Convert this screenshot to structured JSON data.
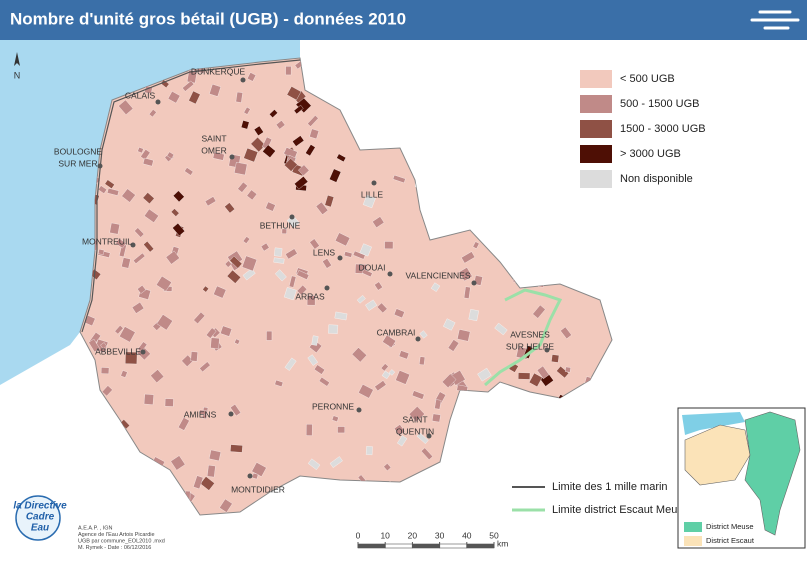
{
  "header": {
    "title": "Nombre d'unité gros bétail (UGB) - données 2010"
  },
  "north": "N",
  "legend": {
    "items": [
      {
        "label": "< 500 UGB",
        "color": "#f2c9bd"
      },
      {
        "label": "500 - 1500 UGB",
        "color": "#c08a88"
      },
      {
        "label": "1500 - 3000 UGB",
        "color": "#8f5145"
      },
      {
        "label": "> 3000 UGB",
        "color": "#4e0f05"
      },
      {
        "label": "Non disponible",
        "color": "#dcdcdc"
      }
    ]
  },
  "cities": [
    {
      "lines": [
        "DUNKERQUE"
      ]
    },
    {
      "lines": [
        "CALAIS"
      ]
    },
    {
      "lines": [
        "SAINT",
        "OMER"
      ]
    },
    {
      "lines": [
        "BOULOGNE",
        "SUR MER"
      ]
    },
    {
      "lines": [
        "LILLE"
      ]
    },
    {
      "lines": [
        "BETHUNE"
      ]
    },
    {
      "lines": [
        "MONTREUIL"
      ]
    },
    {
      "lines": [
        "LENS"
      ]
    },
    {
      "lines": [
        "DOUAI"
      ]
    },
    {
      "lines": [
        "VALENCIENNES"
      ]
    },
    {
      "lines": [
        "ARRAS"
      ]
    },
    {
      "lines": [
        "CAMBRAI"
      ]
    },
    {
      "lines": [
        "AVESNES",
        "SUR HELPE"
      ]
    },
    {
      "lines": [
        "ABBEVILLE"
      ]
    },
    {
      "lines": [
        "AMIENS"
      ]
    },
    {
      "lines": [
        "PERONNE"
      ]
    },
    {
      "lines": [
        "SAINT",
        "QUENTIN"
      ]
    },
    {
      "lines": [
        "MONTDIDIER"
      ]
    }
  ],
  "boundaries": [
    {
      "label": "Limite des 1 mille marin"
    },
    {
      "label": "Limite district Escaut Meuse"
    }
  ],
  "inset": {
    "legend": [
      {
        "label": "District Meuse",
        "color": "#5fcfa6"
      },
      {
        "label": "District Escaut",
        "color": "#fbe3b8"
      }
    ]
  },
  "scale": {
    "ticks": [
      0,
      10,
      20,
      30,
      40,
      50
    ],
    "unit": "km"
  },
  "logo": {
    "lines": [
      "la Directive",
      "Cadre",
      "Eau"
    ]
  },
  "credits": [
    "A.E.A.P. , IGN",
    "Agence de l'Eau Artois Picardie",
    "UGB par commune_EOL2010 .mxd",
    "M. Rymek - Date : 06/12/2016"
  ]
}
